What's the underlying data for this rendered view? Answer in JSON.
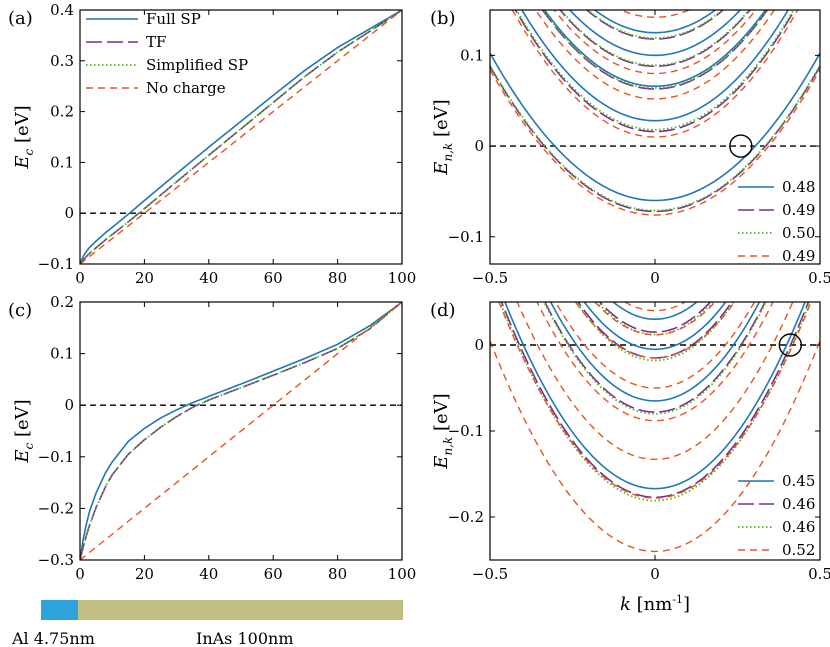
{
  "colors": {
    "full_sp": "#1f77b4",
    "tf": "#7b2d8e",
    "simplified_sp": "#4cb81a",
    "no_charge": "#e8531e",
    "al": "#2ea3dc",
    "inas": "#c2be82"
  },
  "panel_labels": [
    "(a)",
    "(b)",
    "(c)",
    "(d)"
  ],
  "legend_a": [
    "Full SP",
    "TF",
    "Simplified SP",
    "No charge"
  ],
  "axis": {
    "ec_label": "E",
    "ec_sub": "c",
    "ec_unit": "[eV]",
    "enk_label": "E",
    "enk_sub": "n,k",
    "enk_unit": "[eV]",
    "k_label": "k",
    "k_unit": "[nm",
    "k_exp": "-1",
    "k_close": "]"
  },
  "ticks": {
    "a_x": [
      "0",
      "20",
      "40",
      "60",
      "80",
      "100"
    ],
    "a_y": [
      "−0.1",
      "0",
      "0.1",
      "0.2",
      "0.3",
      "0.4"
    ],
    "b_x": [
      "−0.5",
      "0",
      "0.5"
    ],
    "b_y": [
      "−0.1",
      "0",
      "0.1"
    ],
    "c_x": [
      "0",
      "20",
      "40",
      "60",
      "80",
      "100"
    ],
    "c_y": [
      "−0.3",
      "−0.2",
      "−0.1",
      "0",
      "0.1",
      "0.2"
    ],
    "d_x": [
      "−0.5",
      "0",
      "0.5"
    ],
    "d_y": [
      "−0.2",
      "−0.1",
      "0"
    ]
  },
  "legend_b": [
    "0.48",
    "0.49",
    "0.50",
    "0.49"
  ],
  "legend_d": [
    "0.45",
    "0.46",
    "0.46",
    "0.52"
  ],
  "bar_labels": {
    "al": "Al 4.75nm",
    "inas": "InAs 100nm"
  },
  "chart_data": [
    {
      "panel": "(a)",
      "type": "line",
      "xlabel": "",
      "ylabel": "E_c [eV]",
      "xlim": [
        0,
        100
      ],
      "ylim": [
        -0.1,
        0.4
      ],
      "series": [
        {
          "name": "Full SP",
          "x": [
            0,
            1,
            2,
            3,
            5,
            8,
            10,
            15,
            20,
            30,
            40,
            50,
            60,
            70,
            80,
            90,
            100
          ],
          "values": [
            -0.1,
            -0.085,
            -0.075,
            -0.067,
            -0.055,
            -0.038,
            -0.028,
            -0.002,
            0.025,
            0.078,
            0.13,
            0.181,
            0.232,
            0.282,
            0.326,
            0.363,
            0.4
          ]
        },
        {
          "name": "TF",
          "x": [
            0,
            1,
            2,
            3,
            5,
            8,
            10,
            15,
            20,
            30,
            40,
            50,
            60,
            70,
            80,
            90,
            100
          ],
          "values": [
            -0.1,
            -0.092,
            -0.085,
            -0.079,
            -0.068,
            -0.052,
            -0.042,
            -0.017,
            0.009,
            0.062,
            0.114,
            0.166,
            0.218,
            0.27,
            0.317,
            0.358,
            0.4
          ]
        },
        {
          "name": "Simplified SP",
          "x": [
            0,
            1,
            2,
            3,
            5,
            8,
            10,
            15,
            20,
            30,
            40,
            50,
            60,
            70,
            80,
            90,
            100
          ],
          "values": [
            -0.1,
            -0.092,
            -0.085,
            -0.079,
            -0.068,
            -0.052,
            -0.042,
            -0.017,
            0.009,
            0.062,
            0.114,
            0.166,
            0.218,
            0.27,
            0.317,
            0.358,
            0.4
          ]
        },
        {
          "name": "No charge",
          "x": [
            0,
            100
          ],
          "values": [
            -0.1,
            0.4
          ]
        }
      ],
      "hline": 0
    },
    {
      "panel": "(b)",
      "type": "line",
      "xlabel": "",
      "ylabel": "E_n,k [eV]",
      "xlim": [
        -0.5,
        0.5
      ],
      "ylim": [
        -0.13,
        0.15
      ],
      "series": [
        {
          "name": "0.48",
          "style": "Full SP",
          "minima": [
            -0.06,
            0.028,
            0.066,
            0.1,
            0.125
          ],
          "curvature": [
            0.65,
            0.75,
            0.75,
            0.75,
            0.75
          ]
        },
        {
          "name": "0.49",
          "style": "TF",
          "minima": [
            -0.072,
            0.016,
            0.063,
            0.088,
            0.118
          ],
          "curvature": [
            0.64,
            0.75,
            0.75,
            0.75,
            0.75
          ]
        },
        {
          "name": "0.50",
          "style": "Simplified SP",
          "minima": [
            -0.071,
            0.018,
            0.064,
            0.089,
            0.119
          ],
          "curvature": [
            0.64,
            0.75,
            0.75,
            0.75,
            0.75
          ]
        },
        {
          "name": "0.49",
          "style": "No charge",
          "minima": [
            -0.076,
            0.01,
            0.052,
            0.08,
            0.142
          ],
          "curvature": [
            0.64,
            0.75,
            0.75,
            0.75,
            0.75
          ]
        }
      ],
      "hline": 0,
      "marker": {
        "k": 0.26,
        "E": 0
      }
    },
    {
      "panel": "(c)",
      "type": "line",
      "xlabel": "",
      "ylabel": "E_c [eV]",
      "xlim": [
        0,
        100
      ],
      "ylim": [
        -0.3,
        0.2
      ],
      "series": [
        {
          "name": "Full SP",
          "x": [
            0,
            1,
            2,
            3,
            5,
            8,
            10,
            15,
            20,
            25,
            30,
            35,
            40,
            50,
            60,
            70,
            80,
            90,
            100
          ],
          "values": [
            -0.3,
            -0.26,
            -0.23,
            -0.205,
            -0.17,
            -0.13,
            -0.11,
            -0.07,
            -0.045,
            -0.025,
            -0.009,
            0.005,
            0.017,
            0.041,
            0.066,
            0.091,
            0.118,
            0.154,
            0.2
          ]
        },
        {
          "name": "TF",
          "x": [
            0,
            1,
            2,
            3,
            5,
            8,
            10,
            15,
            20,
            25,
            30,
            35,
            40,
            50,
            60,
            70,
            80,
            90,
            100
          ],
          "values": [
            -0.3,
            -0.275,
            -0.252,
            -0.232,
            -0.198,
            -0.157,
            -0.135,
            -0.095,
            -0.067,
            -0.043,
            -0.022,
            -0.004,
            0.01,
            0.034,
            0.058,
            0.083,
            0.11,
            0.148,
            0.2
          ]
        },
        {
          "name": "Simplified SP",
          "x": [
            0,
            1,
            2,
            3,
            5,
            8,
            10,
            15,
            20,
            25,
            30,
            35,
            40,
            50,
            60,
            70,
            80,
            90,
            100
          ],
          "values": [
            -0.3,
            -0.275,
            -0.252,
            -0.232,
            -0.198,
            -0.157,
            -0.135,
            -0.095,
            -0.067,
            -0.043,
            -0.022,
            -0.004,
            0.01,
            0.034,
            0.058,
            0.083,
            0.11,
            0.148,
            0.2
          ]
        },
        {
          "name": "No charge",
          "x": [
            0,
            100
          ],
          "values": [
            -0.3,
            0.2
          ]
        }
      ],
      "hline": 0
    },
    {
      "panel": "(d)",
      "type": "line",
      "xlabel": "k [nm^-1]",
      "ylabel": "E_n,k [eV]",
      "xlim": [
        -0.5,
        0.5
      ],
      "ylim": [
        -0.25,
        0.05
      ],
      "series": [
        {
          "name": "0.45",
          "style": "Full SP",
          "minima": [
            -0.167,
            -0.065,
            -0.005,
            0.03
          ],
          "curvature": [
            1.05,
            1.15,
            1.2,
            1.25
          ]
        },
        {
          "name": "0.46",
          "style": "TF",
          "minima": [
            -0.177,
            -0.078,
            -0.015,
            0.015
          ],
          "curvature": [
            1.05,
            1.15,
            1.2,
            1.25
          ]
        },
        {
          "name": "0.46",
          "style": "Simplified SP",
          "minima": [
            -0.181,
            -0.08,
            -0.018,
            0.012
          ],
          "curvature": [
            1.05,
            1.15,
            1.2,
            1.25
          ]
        },
        {
          "name": "0.52",
          "style": "No charge",
          "minima": [
            -0.24,
            -0.178,
            -0.133,
            -0.088,
            -0.05,
            -0.015,
            0.012,
            0.04
          ],
          "curvature": [
            0.98,
            1.02,
            1.05,
            1.08,
            1.1,
            1.12,
            1.15,
            1.2
          ]
        }
      ],
      "hline": 0,
      "marker": {
        "k": 0.41,
        "E": 0
      }
    }
  ]
}
